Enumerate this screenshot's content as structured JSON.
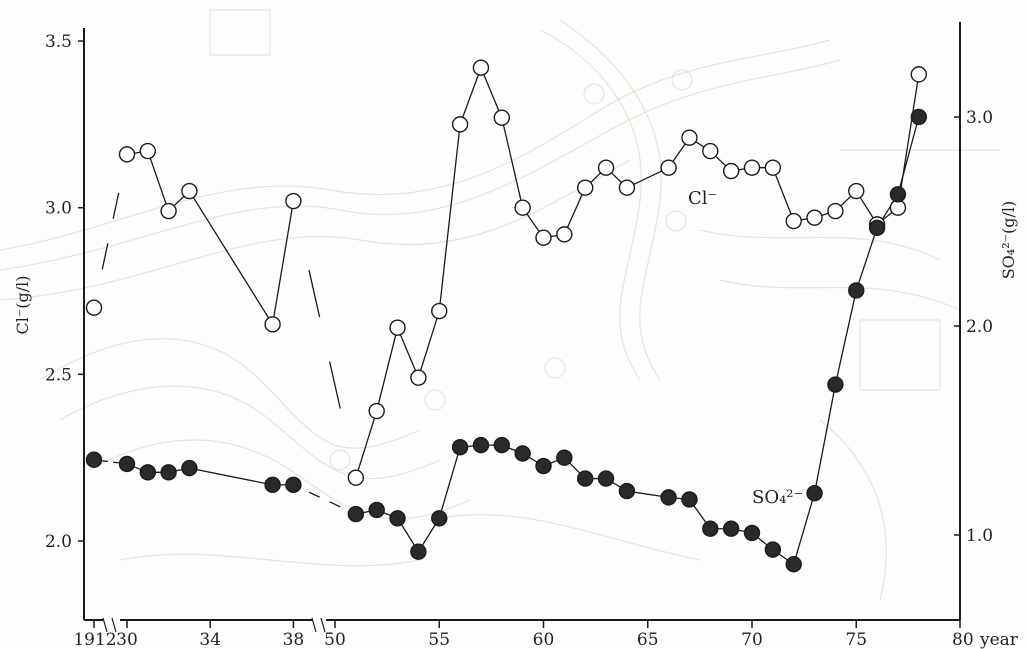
{
  "chart_data": {
    "type": "line",
    "xlabel": "year",
    "ylabel_left": "Cl⁻(g/l)",
    "ylabel_right": "SO₄²⁻(g/l)",
    "ylim_left": [
      1.8,
      3.6
    ],
    "ylim_right": [
      0.6,
      3.3
    ],
    "yticks_left": [
      "2.0",
      "2.5",
      "3.0",
      "3.5"
    ],
    "yticks_right": [
      "1.0",
      "2.0",
      "3.0"
    ],
    "xtick_labels": [
      "1912",
      "30",
      "34",
      "38",
      "50",
      "55",
      "60",
      "65",
      "70",
      "75",
      "80"
    ],
    "x_segments": [
      "1912",
      "1930-1938",
      "1950-1980"
    ],
    "series": [
      {
        "name": "Cl⁻",
        "marker": "open-circle",
        "axis": "left",
        "x": [
          1912,
          1930,
          1931,
          1932,
          1933,
          1937,
          1938,
          1951,
          1952,
          1953,
          1954,
          1955,
          1956,
          1957,
          1958,
          1959,
          1960,
          1961,
          1962,
          1963,
          1964,
          1966,
          1967,
          1968,
          1969,
          1970,
          1971,
          1972,
          1973,
          1974,
          1975,
          1976,
          1977,
          1978
        ],
        "values": [
          2.7,
          3.16,
          3.17,
          2.99,
          3.05,
          2.65,
          3.02,
          2.19,
          2.39,
          2.64,
          2.49,
          2.69,
          3.25,
          3.42,
          3.27,
          3.0,
          2.91,
          2.92,
          3.06,
          3.12,
          3.06,
          3.12,
          3.21,
          3.17,
          3.11,
          3.12,
          3.12,
          2.96,
          2.97,
          2.99,
          3.05,
          2.95,
          3.0,
          3.4
        ]
      },
      {
        "name": "SO₄²⁻",
        "marker": "filled-circle",
        "axis": "right",
        "x": [
          1912,
          1930,
          1931,
          1932,
          1933,
          1937,
          1938,
          1951,
          1952,
          1953,
          1954,
          1955,
          1956,
          1957,
          1958,
          1959,
          1960,
          1961,
          1962,
          1963,
          1964,
          1966,
          1967,
          1968,
          1969,
          1970,
          1971,
          1972,
          1973,
          1974,
          1975,
          1976,
          1977,
          1978
        ],
        "values": [
          1.36,
          1.34,
          1.3,
          1.3,
          1.32,
          1.24,
          1.24,
          1.1,
          1.12,
          1.08,
          0.92,
          1.08,
          1.42,
          1.43,
          1.43,
          1.39,
          1.33,
          1.37,
          1.27,
          1.27,
          1.21,
          1.18,
          1.17,
          1.03,
          1.03,
          1.01,
          0.93,
          0.86,
          1.2,
          1.72,
          2.17,
          2.47,
          2.63,
          3.0
        ]
      }
    ],
    "annotations": [
      "Cl⁻",
      "SO₄²⁻"
    ],
    "grid": false,
    "legend": "none"
  },
  "colors": {
    "ink": "#1a1a1a",
    "paper": "#fdfdfb",
    "map_lines": "#c9c9c4"
  }
}
